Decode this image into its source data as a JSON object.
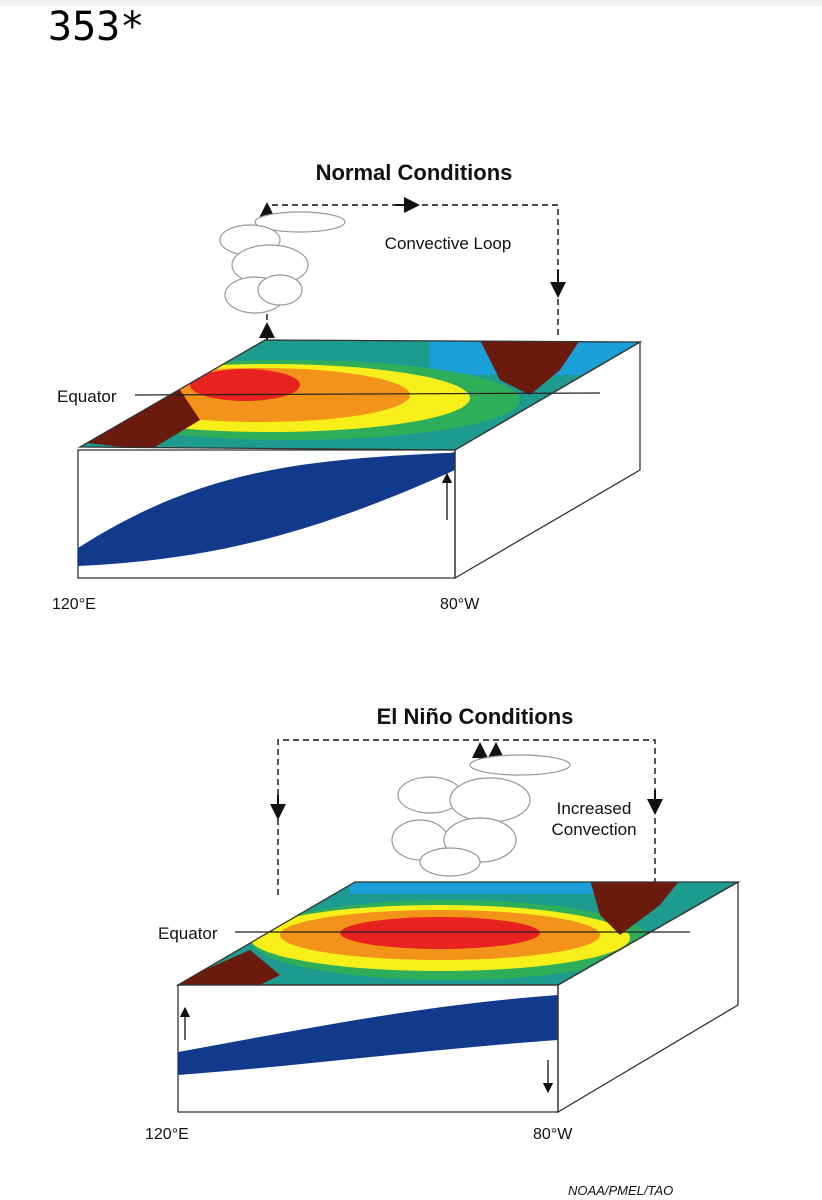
{
  "header": {
    "title": "353*"
  },
  "panels": [
    {
      "title": "Normal Conditions",
      "label": [
        "Convective Loop"
      ],
      "equator": "Equator",
      "left_longitude": "120°E",
      "right_longitude": "80°W"
    },
    {
      "title": "El Niño Conditions",
      "label": [
        "Increased",
        "Convection"
      ],
      "equator": "Equator",
      "left_longitude": "120°E",
      "right_longitude": "80°W"
    }
  ],
  "credit": "NOAA/PMEL/TAO"
}
